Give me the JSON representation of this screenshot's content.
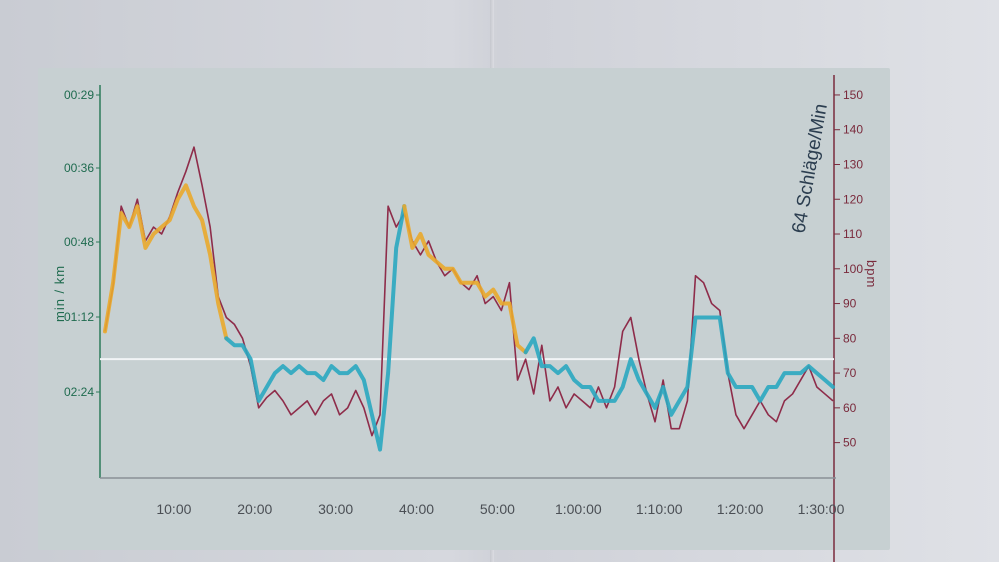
{
  "chart_data": {
    "type": "line",
    "title": "64 Schläge/Min",
    "ylabel_left": "min / km",
    "ylabel_right": "bpm",
    "x_ticks": [
      "10:00",
      "20:00",
      "30:00",
      "40:00",
      "50:00",
      "1:00:00",
      "1:10:00",
      "1:20:00",
      "1:30:00"
    ],
    "x_tick_minutes": [
      10,
      20,
      30,
      40,
      50,
      60,
      70,
      80,
      90
    ],
    "xlim_minutes": [
      0,
      90
    ],
    "left_ticks": [
      "00:29",
      "00:36",
      "00:48",
      "01:12",
      "02:24"
    ],
    "right_ticks": [
      "150",
      "140",
      "130",
      "120",
      "110",
      "100",
      "90",
      "80",
      "70",
      "60",
      "50"
    ],
    "right_tick_values": [
      150,
      140,
      130,
      120,
      110,
      100,
      90,
      80,
      70,
      60,
      50
    ],
    "ylim_bpm": [
      45,
      152
    ],
    "reference_line_bpm": 74,
    "series": [
      {
        "color": "#8e2c4a",
        "x": [
          0,
          1,
          2,
          3,
          4,
          5,
          6,
          7,
          8,
          9,
          10,
          11,
          12,
          13,
          14,
          15,
          16,
          17,
          18,
          19,
          20,
          21,
          22,
          23,
          24,
          25,
          26,
          27,
          28,
          29,
          30,
          31,
          32,
          33,
          34,
          35,
          36,
          37,
          38,
          39,
          40,
          41,
          42,
          43,
          44,
          45,
          46,
          47,
          48,
          49,
          50,
          51,
          52,
          53,
          54,
          55,
          56,
          57,
          58,
          59,
          60,
          61,
          62,
          63,
          64,
          65,
          66,
          67,
          68,
          69,
          70,
          71,
          72,
          73,
          74,
          75,
          76,
          77,
          78,
          79,
          80,
          81,
          82,
          83,
          84,
          85,
          86,
          87,
          88,
          89,
          90
        ],
        "values": [
          82,
          95,
          118,
          112,
          120,
          108,
          112,
          110,
          115,
          122,
          128,
          135,
          124,
          112,
          92,
          86,
          84,
          80,
          72,
          60,
          63,
          65,
          62,
          58,
          60,
          62,
          58,
          62,
          64,
          58,
          60,
          65,
          60,
          52,
          58,
          118,
          112,
          116,
          108,
          104,
          108,
          102,
          98,
          100,
          96,
          94,
          98,
          90,
          92,
          88,
          96,
          68,
          74,
          64,
          78,
          62,
          66,
          60,
          64,
          62,
          60,
          66,
          60,
          66,
          82,
          86,
          74,
          64,
          56,
          68,
          54,
          54,
          62,
          98,
          96,
          90,
          88,
          70,
          58,
          54,
          58,
          62,
          58,
          56,
          62,
          64,
          68,
          72,
          66,
          64,
          62
        ]
      },
      {
        "segments": [
          {
            "color": "#e9a82c",
            "from": 0,
            "to": 15
          },
          {
            "color": "#2aa7c0",
            "from": 15,
            "to": 37
          },
          {
            "color": "#e9a82c",
            "from": 37,
            "to": 52
          },
          {
            "color": "#2aa7c0",
            "from": 52,
            "to": 90
          }
        ],
        "x": [
          0,
          1,
          2,
          3,
          4,
          5,
          6,
          7,
          8,
          9,
          10,
          11,
          12,
          13,
          14,
          15,
          16,
          17,
          18,
          19,
          20,
          21,
          22,
          23,
          24,
          25,
          26,
          27,
          28,
          29,
          30,
          31,
          32,
          33,
          34,
          35,
          36,
          37,
          38,
          39,
          40,
          41,
          42,
          43,
          44,
          45,
          46,
          47,
          48,
          49,
          50,
          51,
          52,
          53,
          54,
          55,
          56,
          57,
          58,
          59,
          60,
          61,
          62,
          63,
          64,
          65,
          66,
          67,
          68,
          69,
          70,
          71,
          72,
          73,
          74,
          75,
          76,
          77,
          78,
          79,
          80,
          81,
          82,
          83,
          84,
          85,
          86,
          87,
          88,
          89,
          90
        ],
        "values": [
          82,
          96,
          116,
          112,
          118,
          106,
          110,
          112,
          114,
          120,
          124,
          118,
          114,
          104,
          90,
          80,
          78,
          78,
          74,
          62,
          66,
          70,
          72,
          70,
          72,
          70,
          70,
          68,
          72,
          70,
          70,
          72,
          68,
          58,
          48,
          70,
          106,
          118,
          106,
          110,
          104,
          102,
          100,
          100,
          96,
          96,
          96,
          92,
          94,
          90,
          90,
          78,
          76,
          80,
          72,
          72,
          70,
          72,
          68,
          66,
          66,
          62,
          62,
          62,
          66,
          74,
          68,
          64,
          60,
          66,
          58,
          62,
          66,
          86,
          86,
          86,
          86,
          70,
          66,
          66,
          66,
          62,
          66,
          66,
          70,
          70,
          70,
          72,
          70,
          68,
          66
        ]
      }
    ]
  }
}
